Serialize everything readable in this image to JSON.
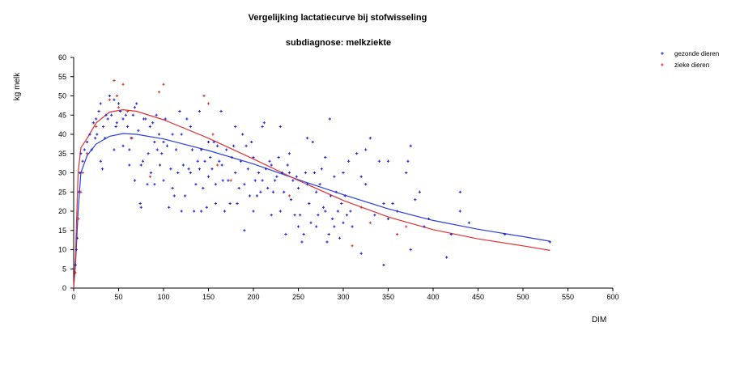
{
  "chart_data": {
    "type": "scatter",
    "title": "Vergelijking lactatiecurve bij stofwisseling",
    "subtitle": "subdiagnose: melkziekte",
    "xlabel": "DIM",
    "ylabel": "kg melk",
    "xlim": [
      0,
      600
    ],
    "ylim": [
      0,
      60
    ],
    "xticks": [
      "0",
      "50",
      "100",
      "150",
      "200",
      "250",
      "300",
      "350",
      "400",
      "450",
      "500",
      "550",
      "600"
    ],
    "yticks": [
      "0",
      "5",
      "10",
      "15",
      "20",
      "25",
      "30",
      "35",
      "40",
      "45",
      "50",
      "55",
      "60"
    ],
    "grid": false,
    "legend_position": "top-right",
    "series": [
      {
        "name": "gezonde dieren",
        "color": "#1f1fd6",
        "marker": "+",
        "points": [
          [
            2,
            6
          ],
          [
            3,
            10
          ],
          [
            4,
            13
          ],
          [
            5,
            18
          ],
          [
            6,
            25
          ],
          [
            7,
            30
          ],
          [
            8,
            35
          ],
          [
            10,
            33
          ],
          [
            12,
            36
          ],
          [
            15,
            38
          ],
          [
            18,
            40
          ],
          [
            20,
            36
          ],
          [
            22,
            43
          ],
          [
            24,
            39
          ],
          [
            25,
            44
          ],
          [
            26,
            40
          ],
          [
            28,
            46
          ],
          [
            30,
            48
          ],
          [
            30,
            33
          ],
          [
            32,
            31
          ],
          [
            33,
            42
          ],
          [
            35,
            39
          ],
          [
            36,
            45
          ],
          [
            38,
            44
          ],
          [
            40,
            50
          ],
          [
            42,
            45
          ],
          [
            45,
            49
          ],
          [
            45,
            36
          ],
          [
            47,
            42
          ],
          [
            48,
            43
          ],
          [
            50,
            48
          ],
          [
            52,
            46
          ],
          [
            55,
            44
          ],
          [
            55,
            37
          ],
          [
            58,
            45
          ],
          [
            60,
            42
          ],
          [
            62,
            36
          ],
          [
            62,
            32
          ],
          [
            64,
            39
          ],
          [
            66,
            45
          ],
          [
            68,
            47
          ],
          [
            68,
            28
          ],
          [
            70,
            48
          ],
          [
            72,
            41
          ],
          [
            74,
            22
          ],
          [
            75,
            21
          ],
          [
            75,
            32
          ],
          [
            77,
            33
          ],
          [
            78,
            44
          ],
          [
            80,
            44
          ],
          [
            82,
            27
          ],
          [
            83,
            35
          ],
          [
            85,
            42
          ],
          [
            86,
            30
          ],
          [
            88,
            43
          ],
          [
            90,
            38
          ],
          [
            90,
            27
          ],
          [
            92,
            45
          ],
          [
            93,
            36
          ],
          [
            95,
            40
          ],
          [
            96,
            32
          ],
          [
            98,
            35
          ],
          [
            100,
            38
          ],
          [
            100,
            28
          ],
          [
            102,
            44
          ],
          [
            104,
            37
          ],
          [
            106,
            21
          ],
          [
            108,
            31
          ],
          [
            110,
            40
          ],
          [
            110,
            26
          ],
          [
            112,
            24
          ],
          [
            114,
            36
          ],
          [
            116,
            30
          ],
          [
            118,
            46
          ],
          [
            120,
            20
          ],
          [
            120,
            40
          ],
          [
            122,
            32
          ],
          [
            124,
            24
          ],
          [
            126,
            44
          ],
          [
            128,
            31
          ],
          [
            130,
            42
          ],
          [
            130,
            30
          ],
          [
            132,
            36
          ],
          [
            134,
            20
          ],
          [
            136,
            27
          ],
          [
            138,
            33
          ],
          [
            140,
            31
          ],
          [
            140,
            46
          ],
          [
            142,
            36
          ],
          [
            142,
            20
          ],
          [
            144,
            26
          ],
          [
            146,
            33
          ],
          [
            148,
            21
          ],
          [
            150,
            38
          ],
          [
            150,
            29
          ],
          [
            152,
            34
          ],
          [
            154,
            31
          ],
          [
            156,
            38
          ],
          [
            158,
            22
          ],
          [
            158,
            27
          ],
          [
            160,
            37
          ],
          [
            162,
            33
          ],
          [
            164,
            46
          ],
          [
            165,
            32
          ],
          [
            166,
            28
          ],
          [
            168,
            20
          ],
          [
            170,
            36
          ],
          [
            172,
            28
          ],
          [
            174,
            22
          ],
          [
            176,
            34
          ],
          [
            178,
            37
          ],
          [
            180,
            30
          ],
          [
            180,
            42
          ],
          [
            182,
            22
          ],
          [
            184,
            26
          ],
          [
            186,
            33
          ],
          [
            188,
            40
          ],
          [
            190,
            15
          ],
          [
            190,
            27
          ],
          [
            192,
            37
          ],
          [
            194,
            31
          ],
          [
            196,
            24
          ],
          [
            198,
            38
          ],
          [
            200,
            34
          ],
          [
            200,
            20
          ],
          [
            202,
            28
          ],
          [
            204,
            24
          ],
          [
            206,
            30
          ],
          [
            208,
            25
          ],
          [
            210,
            42
          ],
          [
            210,
            28
          ],
          [
            212,
            43
          ],
          [
            214,
            31
          ],
          [
            216,
            26
          ],
          [
            218,
            33
          ],
          [
            220,
            32
          ],
          [
            220,
            19
          ],
          [
            222,
            25
          ],
          [
            224,
            28
          ],
          [
            226,
            29
          ],
          [
            228,
            34
          ],
          [
            230,
            42
          ],
          [
            230,
            20
          ],
          [
            232,
            30
          ],
          [
            234,
            25
          ],
          [
            236,
            14
          ],
          [
            238,
            32
          ],
          [
            240,
            35
          ],
          [
            240,
            30
          ],
          [
            242,
            23
          ],
          [
            244,
            28
          ],
          [
            246,
            19
          ],
          [
            248,
            29
          ],
          [
            250,
            26
          ],
          [
            250,
            16
          ],
          [
            252,
            19
          ],
          [
            254,
            12
          ],
          [
            256,
            14
          ],
          [
            258,
            30
          ],
          [
            260,
            39
          ],
          [
            260,
            27
          ],
          [
            262,
            22
          ],
          [
            264,
            17
          ],
          [
            266,
            38
          ],
          [
            268,
            30
          ],
          [
            270,
            25
          ],
          [
            270,
            16
          ],
          [
            272,
            19
          ],
          [
            274,
            27
          ],
          [
            276,
            31
          ],
          [
            278,
            21
          ],
          [
            280,
            34
          ],
          [
            280,
            20
          ],
          [
            282,
            12
          ],
          [
            284,
            14
          ],
          [
            285,
            44
          ],
          [
            286,
            24
          ],
          [
            288,
            18
          ],
          [
            290,
            29
          ],
          [
            290,
            16
          ],
          [
            292,
            25
          ],
          [
            294,
            20
          ],
          [
            296,
            13
          ],
          [
            298,
            22
          ],
          [
            300,
            30
          ],
          [
            300,
            17
          ],
          [
            302,
            24
          ],
          [
            304,
            19
          ],
          [
            306,
            33
          ],
          [
            308,
            20
          ],
          [
            310,
            16
          ],
          [
            315,
            35
          ],
          [
            320,
            29
          ],
          [
            320,
            9
          ],
          [
            325,
            27
          ],
          [
            325,
            36
          ],
          [
            330,
            39
          ],
          [
            335,
            19
          ],
          [
            340,
            33
          ],
          [
            345,
            22
          ],
          [
            345,
            6
          ],
          [
            350,
            18
          ],
          [
            350,
            33
          ],
          [
            355,
            22
          ],
          [
            360,
            20
          ],
          [
            370,
            30
          ],
          [
            372,
            33
          ],
          [
            375,
            37
          ],
          [
            375,
            10
          ],
          [
            380,
            23
          ],
          [
            385,
            25
          ],
          [
            390,
            16
          ],
          [
            395,
            18
          ],
          [
            415,
            8
          ],
          [
            420,
            14
          ],
          [
            430,
            25
          ],
          [
            430,
            20
          ],
          [
            440,
            17
          ],
          [
            480,
            14
          ],
          [
            530,
            12
          ]
        ]
      },
      {
        "name": "zieke dieren",
        "color": "#e03030",
        "marker": "+",
        "points": [
          [
            2,
            4
          ],
          [
            5,
            18
          ],
          [
            8,
            25
          ],
          [
            10,
            30
          ],
          [
            15,
            35
          ],
          [
            25,
            42
          ],
          [
            40,
            49
          ],
          [
            45,
            54
          ],
          [
            48,
            50
          ],
          [
            50,
            47
          ],
          [
            55,
            53
          ],
          [
            60,
            46
          ],
          [
            65,
            39
          ],
          [
            85,
            29
          ],
          [
            95,
            51
          ],
          [
            100,
            53
          ],
          [
            145,
            50
          ],
          [
            150,
            48
          ],
          [
            155,
            40
          ],
          [
            160,
            32
          ],
          [
            175,
            28
          ],
          [
            240,
            24
          ],
          [
            310,
            11
          ],
          [
            320,
            21
          ],
          [
            330,
            17
          ],
          [
            360,
            14
          ],
          [
            370,
            16
          ]
        ]
      }
    ],
    "fitted_curves": [
      {
        "series": "gezonde dieren",
        "color": "#2a3de0",
        "points": [
          [
            0,
            0
          ],
          [
            2,
            6
          ],
          [
            5,
            20
          ],
          [
            8,
            30
          ],
          [
            15,
            34.5
          ],
          [
            25,
            37.5
          ],
          [
            40,
            39.5
          ],
          [
            55,
            40.2
          ],
          [
            70,
            40
          ],
          [
            100,
            38.8
          ],
          [
            150,
            35.8
          ],
          [
            200,
            32.3
          ],
          [
            250,
            28.2
          ],
          [
            300,
            24.3
          ],
          [
            350,
            20.6
          ],
          [
            400,
            17.6
          ],
          [
            450,
            15.3
          ],
          [
            500,
            13.4
          ],
          [
            530,
            12.2
          ]
        ]
      },
      {
        "series": "zieke dieren",
        "color": "#e03030",
        "points": [
          [
            0,
            0
          ],
          [
            2,
            8
          ],
          [
            5,
            30
          ],
          [
            8,
            36.5
          ],
          [
            15,
            39
          ],
          [
            25,
            43
          ],
          [
            40,
            45.8
          ],
          [
            55,
            46.4
          ],
          [
            70,
            46
          ],
          [
            100,
            43.8
          ],
          [
            150,
            39
          ],
          [
            200,
            33.6
          ],
          [
            250,
            28
          ],
          [
            300,
            22.8
          ],
          [
            350,
            18.5
          ],
          [
            400,
            15.2
          ],
          [
            450,
            12.8
          ],
          [
            500,
            11
          ],
          [
            530,
            9.8
          ]
        ]
      }
    ]
  }
}
